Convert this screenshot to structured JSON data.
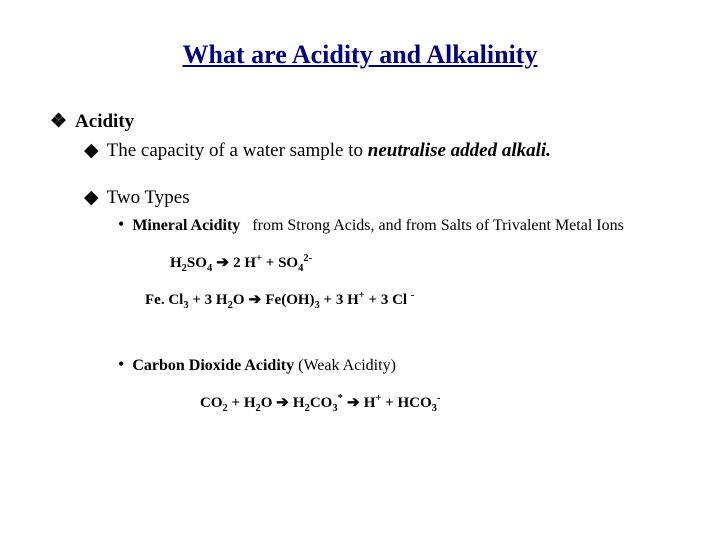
{
  "colors": {
    "title": "#000080",
    "text": "#000000",
    "background": "#ffffff"
  },
  "fonts": {
    "family": "Times New Roman",
    "title_size_pt": 26,
    "l1_size_pt": 19,
    "l2_size_pt": 19,
    "l3_size_pt": 16,
    "eq_size_pt": 15
  },
  "bullets": {
    "l1": "❖",
    "l2": "◆",
    "l3": "•"
  },
  "title": "What are Acidity and Alkalinity",
  "l1_acidity": "Acidity",
  "l2_definition_pre": "The capacity of a water sample to ",
  "l2_definition_em": "neutralise added alkali.",
  "l2_twotypes": "Two Types",
  "l3_mineral_label": "Mineral Acidity",
  "l3_mineral_desc": "from Strong Acids,  and from Salts of Trivalent Metal Ions",
  "l3_co2": "Carbon Dioxide Acidity",
  "l3_co2_paren": " (Weak Acidity)",
  "eq1": {
    "h2so4": "H",
    "h2so4_s1": "2",
    "h2so4_b": "SO",
    "h2so4_s2": "4",
    "arrow": " ➔ ",
    "rhs_a": "2 H",
    "rhs_a_sup": "+",
    "plus": "  +  ",
    "rhs_b": "SO",
    "rhs_b_sub": "4",
    "rhs_b_sup": "2-"
  },
  "eq2": {
    "lhs_a": "Fe. Cl",
    "lhs_a_sub": "3",
    "plus1": "  +  ",
    "lhs_b": "3 H",
    "lhs_b_sub": "2",
    "lhs_b2": "O",
    "arrow": "  ➔  ",
    "rhs_a": "Fe(OH)",
    "rhs_a_sub": "3",
    "plus2": "  +  ",
    "rhs_b": "3 H",
    "rhs_b_sup": "+",
    "plus3": "  +  ",
    "rhs_c": "3 Cl ",
    "rhs_c_sup": "-"
  },
  "eq3": {
    "lhs_a": "CO",
    "lhs_a_sub": "2",
    "plus1": "  +  ",
    "lhs_b": "H",
    "lhs_b_sub": "2",
    "lhs_b2": "O ",
    "arrow1": "➔ ",
    "mid": "H",
    "mid_sub1": "2",
    "mid2": "CO",
    "mid_sub2": "3",
    "mid_sup": "*",
    "arrow2": " ➔ ",
    "rhs_a": "H",
    "rhs_a_sup": "+",
    "plus2": "  +  ",
    "rhs_b": "HCO",
    "rhs_b_sub": "3",
    "rhs_b_sup": "-"
  }
}
